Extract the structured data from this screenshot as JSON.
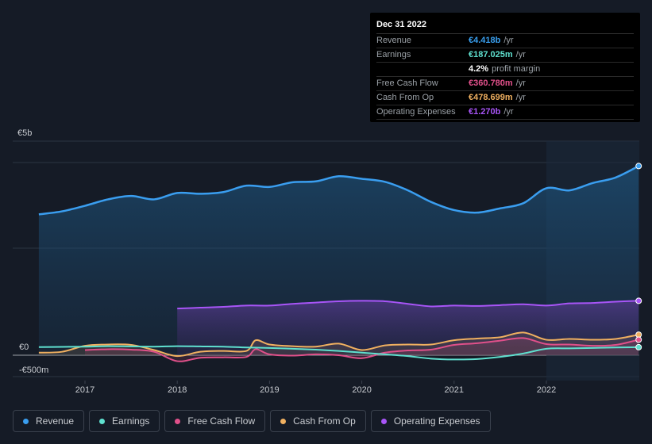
{
  "tooltip": {
    "date": "Dec 31 2022",
    "rows": [
      {
        "label": "Revenue",
        "value": "€4.418b",
        "unit": "/yr",
        "color": "#3aa0f0"
      },
      {
        "label": "Earnings",
        "value": "€187.025m",
        "unit": "/yr",
        "color": "#5fe0cf"
      },
      {
        "label": "",
        "value": "4.2%",
        "unit": "profit margin",
        "color": "#ffffff"
      },
      {
        "label": "Free Cash Flow",
        "value": "€360.780m",
        "unit": "/yr",
        "color": "#e0508a"
      },
      {
        "label": "Cash From Op",
        "value": "€478.699m",
        "unit": "/yr",
        "color": "#f0b060"
      },
      {
        "label": "Operating Expenses",
        "value": "€1.270b",
        "unit": "/yr",
        "color": "#a855f7"
      }
    ]
  },
  "legend": [
    {
      "label": "Revenue",
      "color": "#3a9ef0"
    },
    {
      "label": "Earnings",
      "color": "#5fe0cf"
    },
    {
      "label": "Free Cash Flow",
      "color": "#e0508a"
    },
    {
      "label": "Cash From Op",
      "color": "#f0b060"
    },
    {
      "label": "Operating Expenses",
      "color": "#a855f7"
    }
  ],
  "chart_data": {
    "type": "area",
    "title": "",
    "xlabel": "",
    "ylabel": "",
    "y_label_top": "€5b",
    "y_label_zero": "€0",
    "y_label_bottom": "-€500m",
    "ylim": [
      -500,
      5000
    ],
    "xlim": [
      2016.5,
      2023.0
    ],
    "x_ticks": [
      {
        "value": 2017,
        "label": "2017"
      },
      {
        "value": 2018,
        "label": "2018"
      },
      {
        "value": 2019,
        "label": "2019"
      },
      {
        "value": 2020,
        "label": "2020"
      },
      {
        "value": 2021,
        "label": "2021"
      },
      {
        "value": 2022,
        "label": "2022"
      }
    ],
    "forecast_start": 2022.0,
    "series": [
      {
        "name": "Revenue",
        "color": "#3a9ef0",
        "fill": true,
        "x": [
          2016.5,
          2016.75,
          2017.0,
          2017.25,
          2017.5,
          2017.75,
          2018.0,
          2018.25,
          2018.5,
          2018.75,
          2019.0,
          2019.25,
          2019.5,
          2019.75,
          2020.0,
          2020.25,
          2020.5,
          2020.75,
          2021.0,
          2021.25,
          2021.5,
          2021.75,
          2022.0,
          2022.25,
          2022.5,
          2022.75,
          2023.0
        ],
        "values": [
          3290,
          3360,
          3490,
          3640,
          3720,
          3640,
          3790,
          3770,
          3810,
          3960,
          3930,
          4040,
          4060,
          4180,
          4120,
          4050,
          3850,
          3580,
          3390,
          3330,
          3430,
          3550,
          3900,
          3850,
          4020,
          4150,
          4418
        ]
      },
      {
        "name": "Operating Expenses",
        "color": "#a855f7",
        "fill": true,
        "x": [
          2018.0,
          2018.25,
          2018.5,
          2018.75,
          2019.0,
          2019.25,
          2019.5,
          2019.75,
          2020.0,
          2020.25,
          2020.5,
          2020.75,
          2021.0,
          2021.25,
          2021.5,
          2021.75,
          2022.0,
          2022.25,
          2022.5,
          2022.75,
          2023.0
        ],
        "values": [
          1090,
          1110,
          1130,
          1160,
          1160,
          1200,
          1230,
          1260,
          1270,
          1260,
          1200,
          1140,
          1160,
          1150,
          1170,
          1190,
          1160,
          1210,
          1220,
          1250,
          1270
        ]
      },
      {
        "name": "Cash From Op",
        "color": "#f0b060",
        "fill": true,
        "x": [
          2016.5,
          2016.75,
          2017.0,
          2017.25,
          2017.5,
          2017.75,
          2018.0,
          2018.25,
          2018.5,
          2018.75,
          2018.85,
          2019.0,
          2019.25,
          2019.5,
          2019.75,
          2020.0,
          2020.25,
          2020.5,
          2020.75,
          2021.0,
          2021.25,
          2021.5,
          2021.75,
          2022.0,
          2022.25,
          2022.5,
          2022.75,
          2023.0
        ],
        "values": [
          60,
          80,
          220,
          250,
          240,
          120,
          -20,
          80,
          100,
          100,
          350,
          250,
          210,
          200,
          270,
          120,
          230,
          250,
          250,
          350,
          390,
          420,
          530,
          360,
          380,
          360,
          380,
          479
        ]
      },
      {
        "name": "Free Cash Flow",
        "color": "#e0508a",
        "fill": true,
        "x": [
          2017.0,
          2017.25,
          2017.5,
          2017.75,
          2018.0,
          2018.25,
          2018.5,
          2018.75,
          2018.85,
          2019.0,
          2019.25,
          2019.5,
          2019.75,
          2020.0,
          2020.25,
          2020.5,
          2020.75,
          2021.0,
          2021.25,
          2021.5,
          2021.75,
          2022.0,
          2022.25,
          2022.5,
          2022.75,
          2023.0
        ],
        "values": [
          120,
          140,
          130,
          80,
          -140,
          -60,
          -50,
          -40,
          140,
          20,
          -10,
          20,
          0,
          -70,
          60,
          110,
          130,
          240,
          280,
          340,
          400,
          260,
          250,
          220,
          240,
          361
        ]
      },
      {
        "name": "Earnings",
        "color": "#5fe0cf",
        "fill": false,
        "x": [
          2016.5,
          2016.75,
          2017.0,
          2017.25,
          2017.5,
          2017.75,
          2018.0,
          2018.25,
          2018.5,
          2018.75,
          2019.0,
          2019.25,
          2019.5,
          2019.75,
          2020.0,
          2020.25,
          2020.5,
          2020.75,
          2021.0,
          2021.25,
          2021.5,
          2021.75,
          2022.0,
          2022.25,
          2022.5,
          2022.75,
          2023.0
        ],
        "values": [
          190,
          195,
          200,
          210,
          205,
          200,
          210,
          205,
          200,
          180,
          170,
          150,
          130,
          100,
          60,
          20,
          -20,
          -80,
          -100,
          -90,
          -40,
          40,
          150,
          160,
          170,
          180,
          187
        ]
      }
    ]
  }
}
